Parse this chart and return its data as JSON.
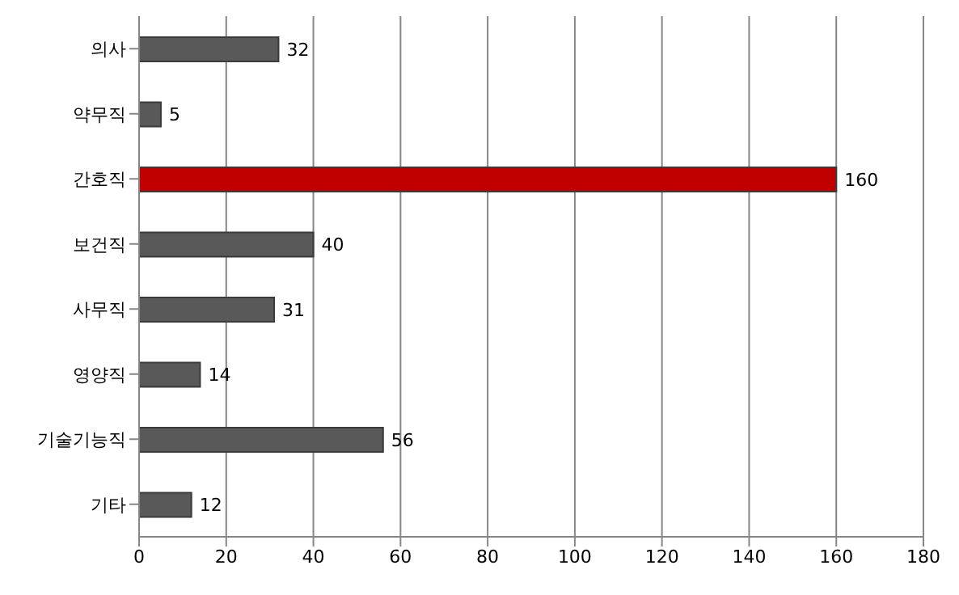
{
  "chart_data": {
    "type": "bar",
    "orientation": "horizontal",
    "categories": [
      "의사",
      "약무직",
      "간호직",
      "보건직",
      "사무직",
      "영양직",
      "기술기능직",
      "기타"
    ],
    "values": [
      32,
      5,
      160,
      40,
      31,
      14,
      56,
      12
    ],
    "colors": [
      "#595959",
      "#595959",
      "#c00000",
      "#595959",
      "#595959",
      "#595959",
      "#595959",
      "#595959"
    ],
    "xlim": [
      0,
      180
    ],
    "xticks": [
      0,
      20,
      40,
      60,
      80,
      100,
      120,
      140,
      160,
      180
    ],
    "grid": "x",
    "data_labels": true
  }
}
